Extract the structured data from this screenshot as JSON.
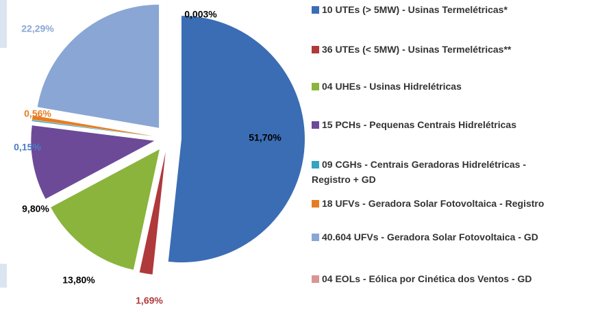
{
  "chart_data": {
    "type": "pie",
    "series": [
      {
        "name": "10 UTEs (> 5MW) - Usinas Termelétricas*",
        "color": "#3b6db4",
        "values": [
          51.7
        ],
        "value_labels": [
          "51,70%"
        ]
      },
      {
        "name": "36 UTEs (< 5MW) - Usinas Termelétricas**",
        "color": "#b0393b",
        "values": [
          1.69
        ],
        "value_labels": [
          "1,69%"
        ]
      },
      {
        "name": "04 UHEs - Usinas Hidrelétricas",
        "color": "#8ab43c",
        "values": [
          13.8
        ],
        "value_labels": [
          "13,80%"
        ]
      },
      {
        "name": "15 PCHs - Pequenas Centrais Hidrelétricas",
        "color": "#6c4a98",
        "values": [
          9.8
        ],
        "value_labels": [
          "9,80%"
        ]
      },
      {
        "name": "09 CGHs - Centrais Geradoras Hidrelétricas - Registro + GD",
        "color": "#36a3bf",
        "values": [
          0.15
        ],
        "value_labels": [
          "0,15%"
        ]
      },
      {
        "name": "18 UFVs -  Geradora Solar Fotovoltaica - Registro",
        "color": "#e67d22",
        "values": [
          0.56
        ],
        "value_labels": [
          "0,56%"
        ]
      },
      {
        "name": "40.604 UFVs -  Geradora Solar Fotovoltaica - GD",
        "color": "#8aa6d4",
        "values": [
          22.29
        ],
        "value_labels": [
          "22,29%"
        ]
      },
      {
        "name": "04 EOLs - Eólica por Cinética dos Ventos - GD",
        "color": "#d99594",
        "values": [
          0.003
        ],
        "value_labels": [
          "0,003%"
        ]
      }
    ],
    "label_colors": [
      "#000000",
      "#b0393b",
      "#000000",
      "#000000",
      "#4a7cc7",
      "#e67d22",
      "#8aa6d4",
      "#000000"
    ]
  }
}
